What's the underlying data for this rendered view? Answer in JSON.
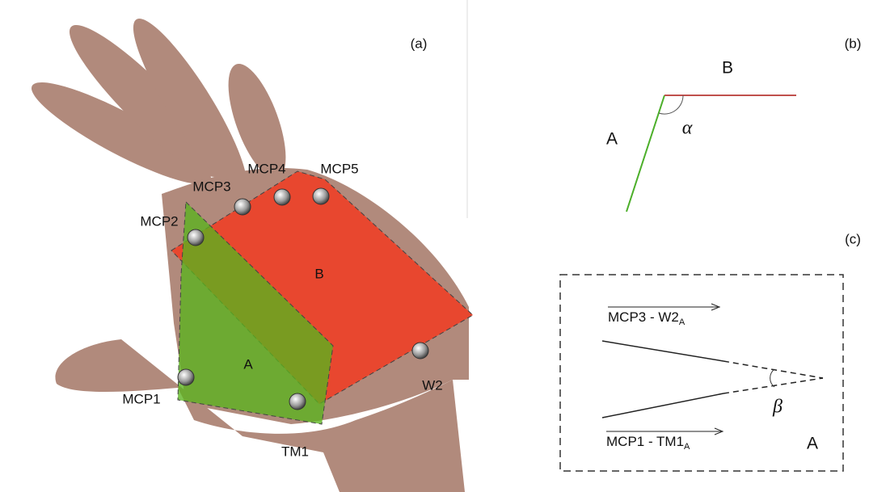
{
  "panel_a": {
    "label": "(a)",
    "regions": [
      {
        "label": "A"
      },
      {
        "label": "B"
      }
    ],
    "markers": [
      {
        "label": "MCP1"
      },
      {
        "label": "MCP2"
      },
      {
        "label": "MCP3"
      },
      {
        "label": "MCP4"
      },
      {
        "label": "MCP5"
      },
      {
        "label": "TM1"
      },
      {
        "label": "W2"
      }
    ]
  },
  "panel_b": {
    "label": "(b)",
    "segment_a": "A",
    "segment_b": "B",
    "angle": "α"
  },
  "panel_c": {
    "label": "(c)",
    "vectors": [
      {
        "text": "MCP3 - W2",
        "subscript": "A"
      },
      {
        "text": "MCP1 - TM1",
        "subscript": "A"
      }
    ],
    "angle": "β",
    "plane": "A"
  }
}
